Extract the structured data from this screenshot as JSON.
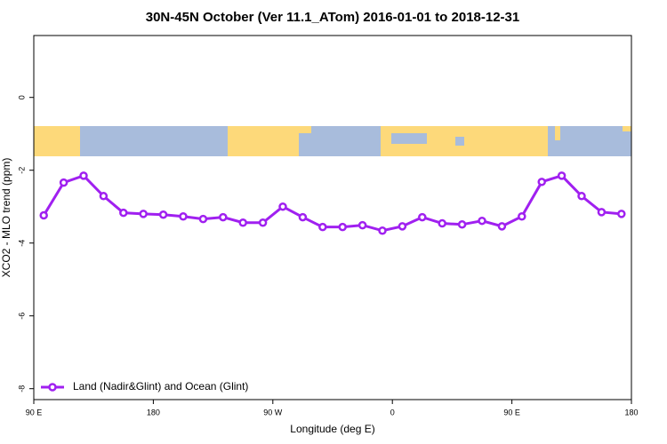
{
  "chart_data": {
    "type": "line",
    "title": "30N-45N October (Ver 11.1_ATom)   2016-01-01 to 2018-12-31",
    "xlabel": "Longitude (deg E)",
    "ylabel": "XCO2 - MLO trend (ppm)",
    "x": [
      97.5,
      112.5,
      127.5,
      142.5,
      157.5,
      172.5,
      187.5,
      202.5,
      217.5,
      232.5,
      247.5,
      262.5,
      277.5,
      292.5,
      307.5,
      322.5,
      337.5,
      352.5,
      367.5,
      382.5,
      397.5,
      412.5,
      427.5,
      442.5,
      457.5,
      472.5,
      487.5,
      502.5,
      517.5,
      532.5
    ],
    "series": [
      {
        "name": "Land (Nadir&Glint) and Ocean (Glint)",
        "color": "#a020f0",
        "values": [
          -3.24,
          -2.34,
          -2.15,
          -2.71,
          -3.17,
          -3.2,
          -3.22,
          -3.27,
          -3.34,
          -3.29,
          -3.44,
          -3.44,
          -3.0,
          -3.29,
          -3.56,
          -3.56,
          -3.51,
          -3.66,
          -3.54,
          -3.29,
          -3.46,
          -3.49,
          -3.39,
          -3.54,
          -3.27,
          -2.32,
          -2.15,
          -2.71,
          -3.15,
          -3.2
        ]
      }
    ],
    "xlim": [
      90,
      540
    ],
    "xticks": [
      {
        "value": 90,
        "label": "90 E"
      },
      {
        "value": 180,
        "label": "180"
      },
      {
        "value": 270,
        "label": "90 W"
      },
      {
        "value": 360,
        "label": "0"
      },
      {
        "value": 450,
        "label": "90 E"
      },
      {
        "value": 540,
        "label": "180"
      }
    ],
    "ylim": [
      -8.3,
      1.7
    ],
    "yticks": [
      -8,
      -6,
      -4,
      -2,
      0
    ],
    "legend": "bottomleft"
  }
}
